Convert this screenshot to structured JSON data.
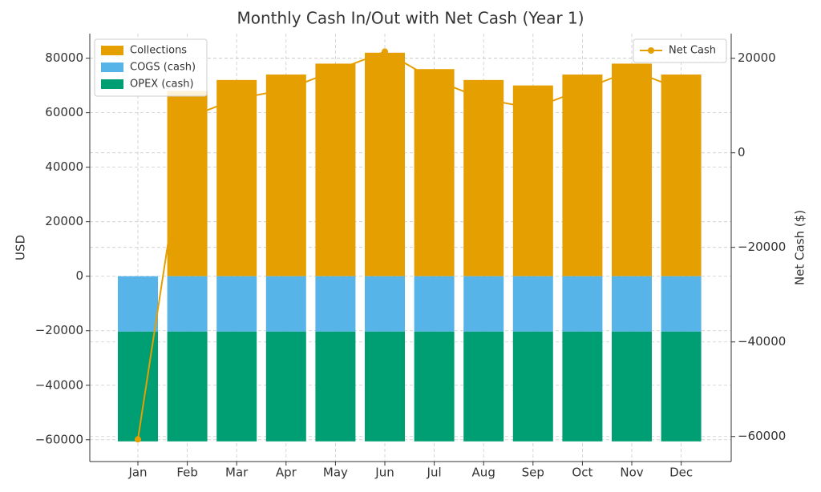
{
  "chart_data": {
    "type": "bar",
    "title": "Monthly Cash In/Out with Net Cash (Year 1)",
    "y_label": "USD",
    "y2_label": "Net Cash ($)",
    "categories": [
      "Jan",
      "Feb",
      "Mar",
      "Apr",
      "May",
      "Jun",
      "Jul",
      "Aug",
      "Sep",
      "Oct",
      "Nov",
      "Dec"
    ],
    "series": [
      {
        "name": "Collections",
        "color": "#E69F00",
        "values": [
          0,
          68000,
          72000,
          74000,
          78000,
          82000,
          76000,
          72000,
          70000,
          74000,
          78000,
          74000
        ]
      },
      {
        "name": "COGS (cash)",
        "color": "#56B4E9",
        "values": [
          -20300,
          -20300,
          -20300,
          -20300,
          -20300,
          -20300,
          -20300,
          -20300,
          -20300,
          -20300,
          -20300,
          -20300
        ]
      },
      {
        "name": "OPEX (cash)",
        "color": "#009E73",
        "values": [
          -40300,
          -40300,
          -40300,
          -40300,
          -40300,
          -40300,
          -40300,
          -40300,
          -40300,
          -40300,
          -40300,
          -40300
        ]
      },
      {
        "name": "Net Cash",
        "color": "#E69F00",
        "axis": "y2",
        "type": "line",
        "values": [
          -60600,
          7400,
          11400,
          13400,
          17400,
          21400,
          15400,
          11400,
          9400,
          13400,
          17400,
          13400
        ]
      }
    ],
    "ylim": [
      -68000,
      89000
    ],
    "yticks": [
      {
        "value": -60000,
        "label": "−60000"
      },
      {
        "value": -40000,
        "label": "−40000"
      },
      {
        "value": -20000,
        "label": "−20000"
      },
      0,
      20000,
      40000,
      60000,
      80000
    ],
    "y2lim": [
      -65300,
      25200
    ],
    "y2ticks": [
      {
        "value": -60000,
        "label": "−60000"
      },
      {
        "value": -40000,
        "label": "−40000"
      },
      {
        "value": -20000,
        "label": "−20000"
      },
      0,
      20000
    ],
    "grid": true,
    "legend": "upper left",
    "legend2": "upper right"
  }
}
